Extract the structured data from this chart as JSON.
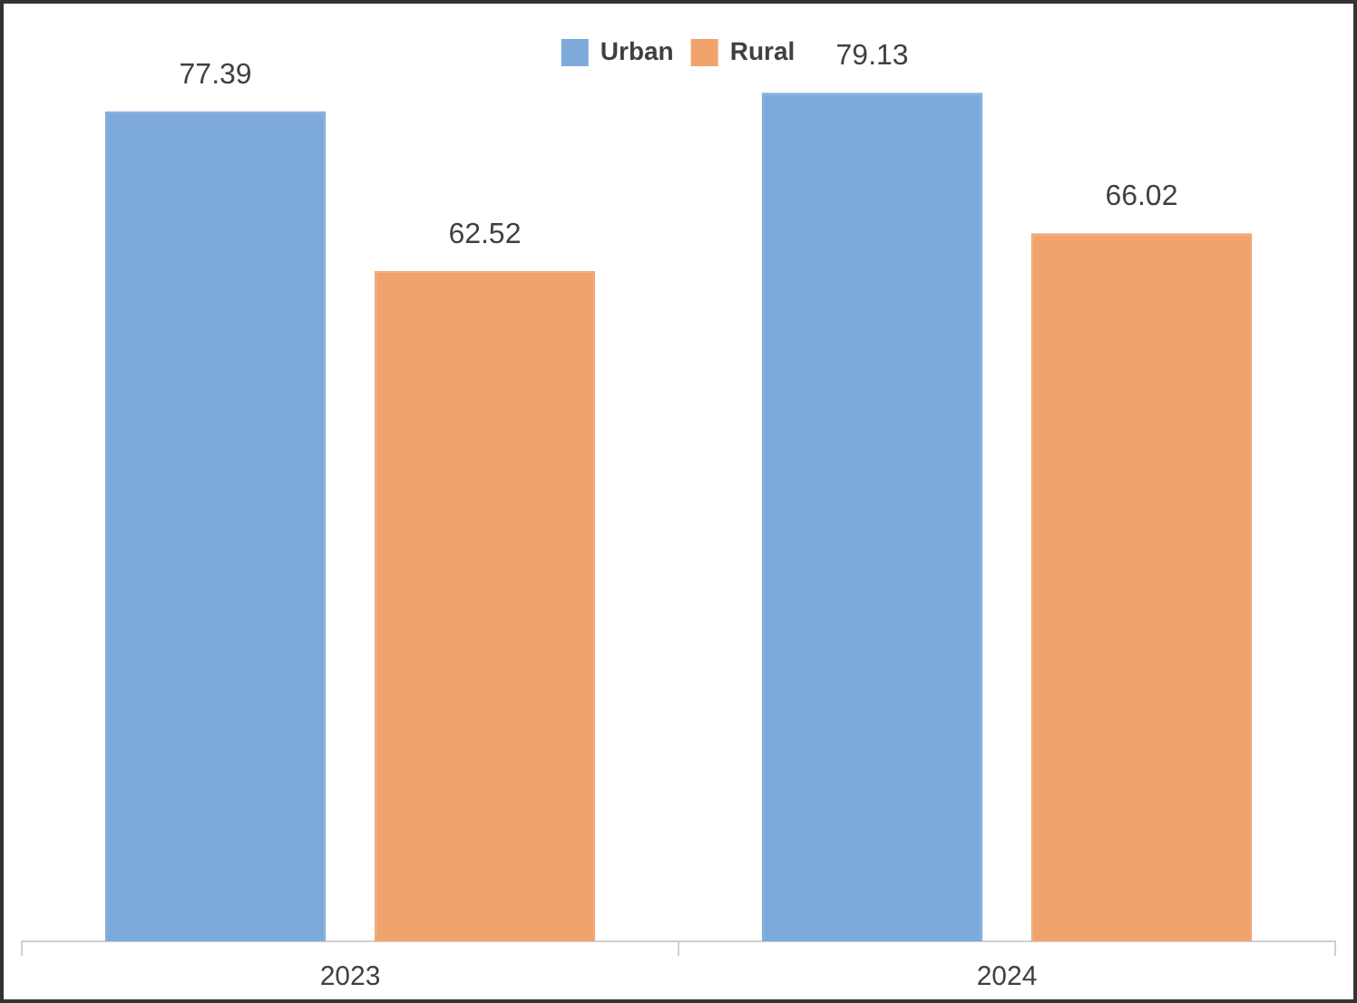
{
  "chart_data": {
    "type": "bar",
    "categories": [
      "2023",
      "2024"
    ],
    "series": [
      {
        "name": "Urban",
        "color": "#7eaadb",
        "values": [
          77.39,
          79.13
        ]
      },
      {
        "name": "Rural",
        "color": "#f0a36d",
        "values": [
          62.52,
          66.02
        ]
      }
    ],
    "data_labels": true,
    "legend": "top",
    "grid": false,
    "tick_labels": "x"
  }
}
